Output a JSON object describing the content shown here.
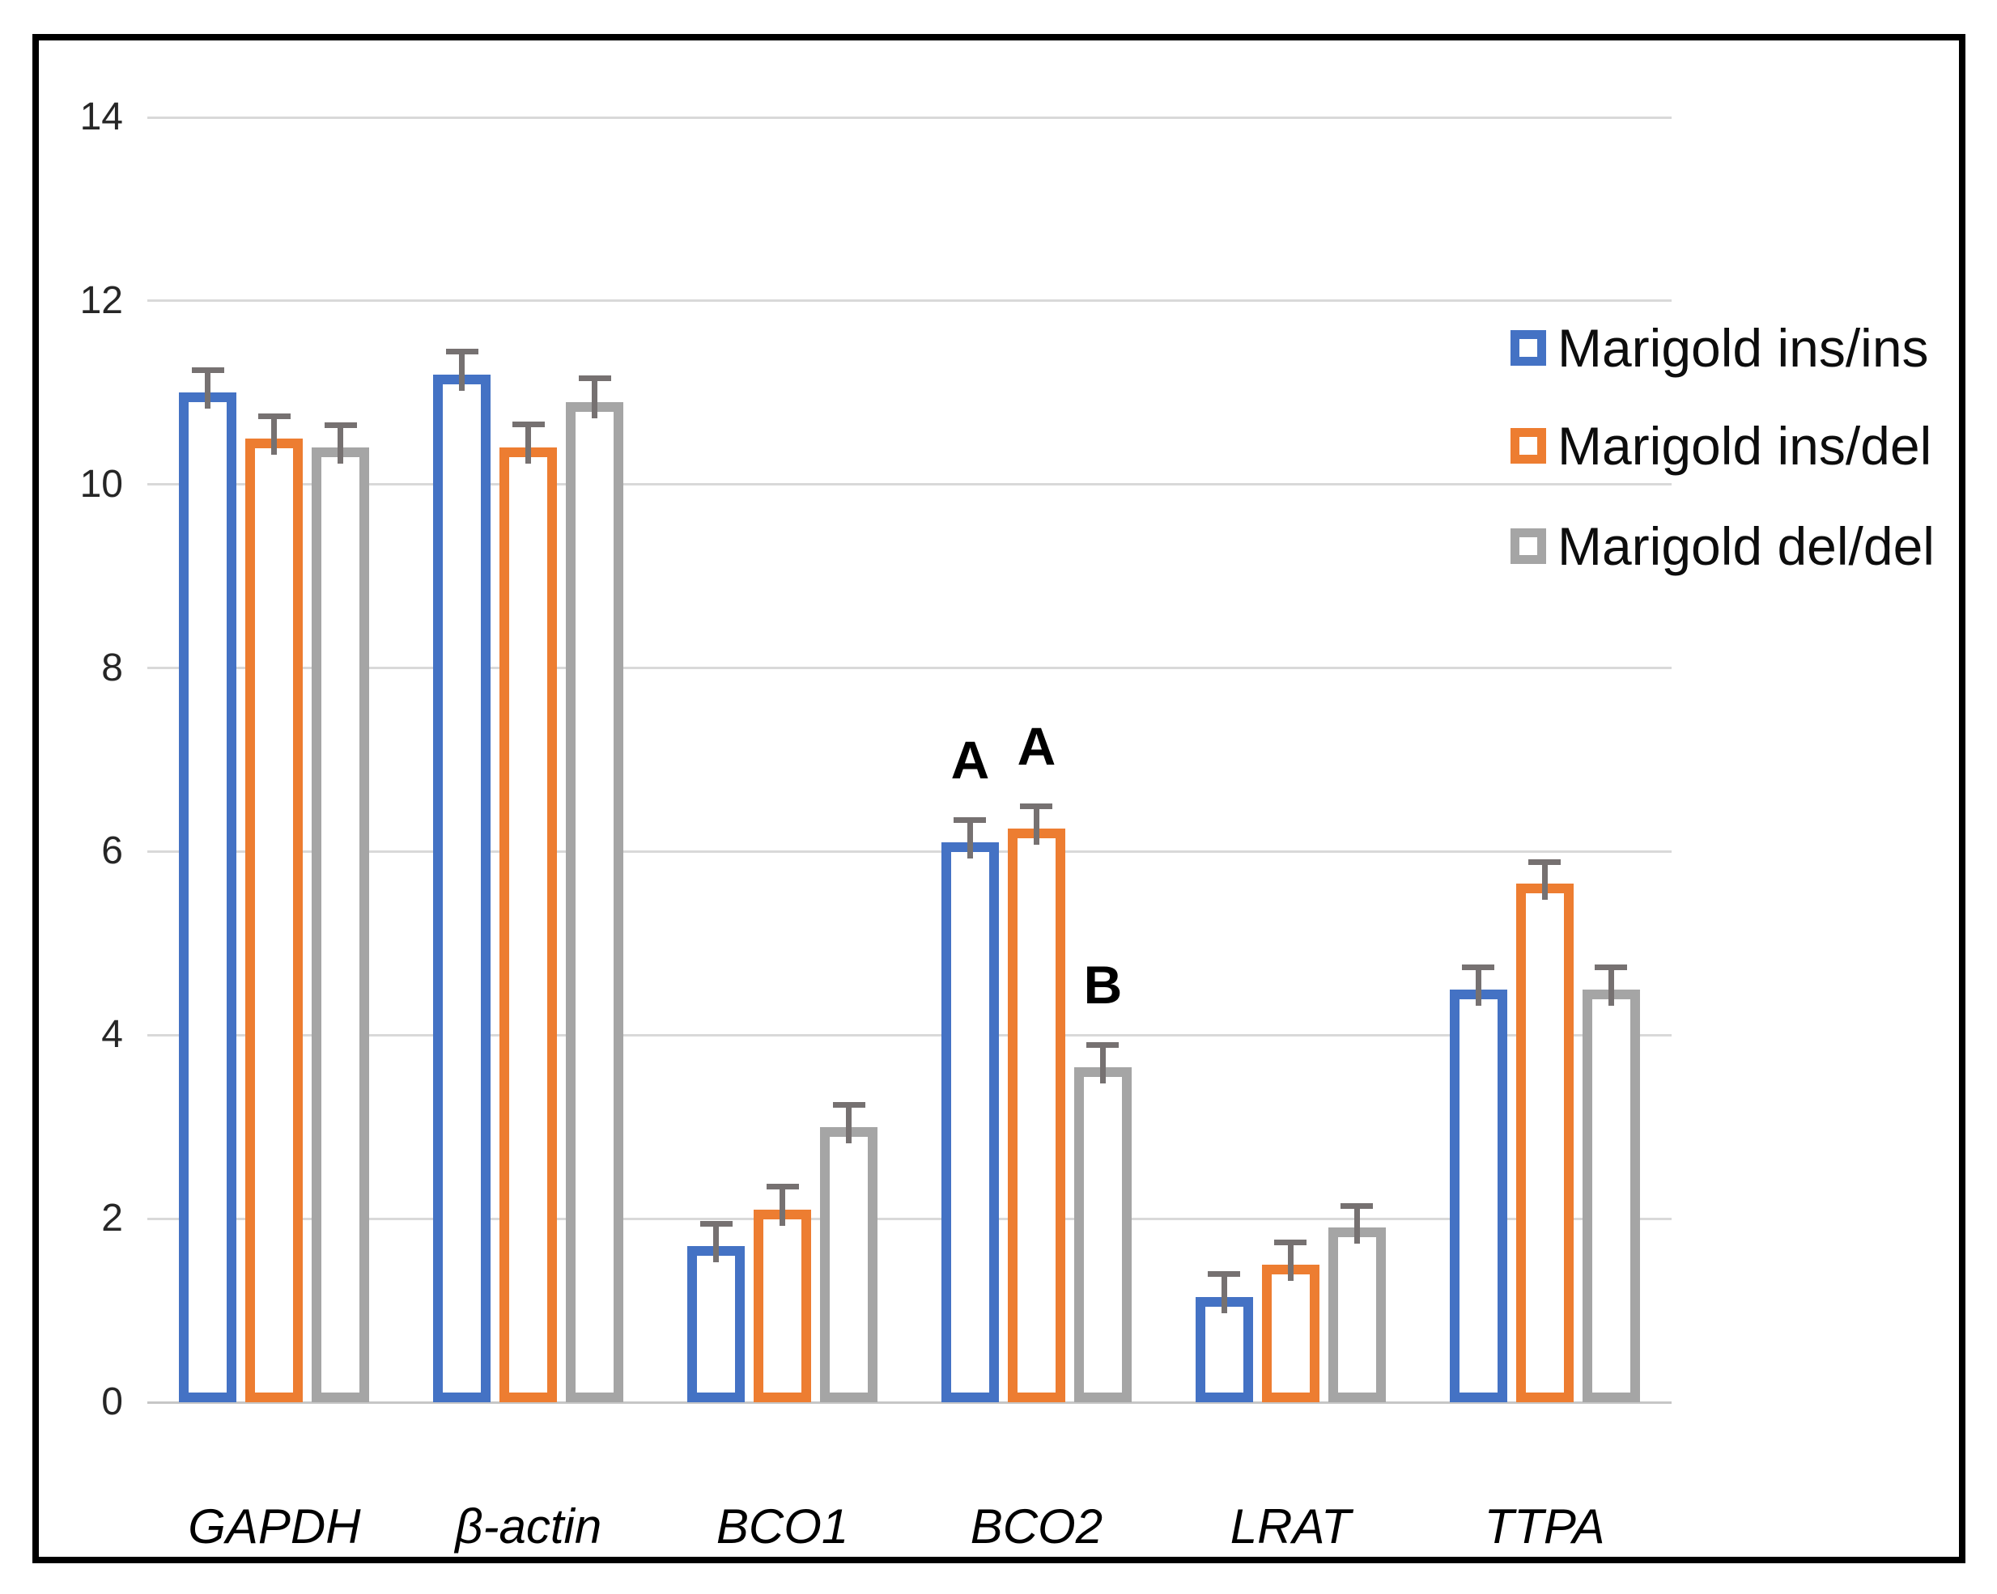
{
  "chart_data": {
    "type": "bar",
    "title": "",
    "xlabel": "",
    "ylabel": "",
    "categories": [
      "GAPDH",
      "β-actin",
      "BCO1",
      "BCO2",
      "LRAT",
      "TTPA"
    ],
    "series": [
      {
        "name": "Marigold ins/ins",
        "color": "#4472C4",
        "values": [
          11.0,
          11.2,
          1.7,
          6.1,
          1.15,
          4.5
        ],
        "errors": [
          0.25,
          0.25,
          0.25,
          0.25,
          0.25,
          0.24
        ]
      },
      {
        "name": "Marigold ins/del",
        "color": "#ED7D31",
        "values": [
          10.5,
          10.4,
          2.1,
          6.25,
          1.5,
          5.65
        ],
        "errors": [
          0.25,
          0.26,
          0.25,
          0.25,
          0.25,
          0.24
        ]
      },
      {
        "name": "Marigold del/del",
        "color": "#A5A5A5",
        "values": [
          10.4,
          10.9,
          3.0,
          3.65,
          1.9,
          4.5
        ],
        "errors": [
          0.25,
          0.26,
          0.24,
          0.25,
          0.24,
          0.24
        ]
      }
    ],
    "annotations": [
      {
        "category": "BCO2",
        "series": 0,
        "text": "A"
      },
      {
        "category": "BCO2",
        "series": 1,
        "text": "A"
      },
      {
        "category": "BCO2",
        "series": 2,
        "text": "B"
      }
    ],
    "y_ticks": [
      "0",
      "2",
      "4",
      "6",
      "8",
      "10",
      "12",
      "14"
    ],
    "ylim": [
      0,
      14
    ],
    "grid": true,
    "legend_position": "right-inside",
    "colors": {
      "gridline": "#D9D9D9",
      "axis_line": "#C6C6C6",
      "error_bar": "#767171",
      "tick_text": "#262626",
      "frame_border": "#000000",
      "background": "#FFFFFF"
    }
  }
}
